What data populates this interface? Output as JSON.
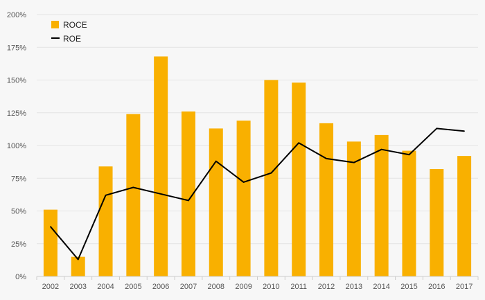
{
  "chart_data": {
    "type": "bar",
    "categories": [
      "2002",
      "2003",
      "2004",
      "2005",
      "2006",
      "2007",
      "2008",
      "2009",
      "2010",
      "2011",
      "2012",
      "2013",
      "2014",
      "2015",
      "2016",
      "2017"
    ],
    "series": [
      {
        "name": "ROCE",
        "type": "bar",
        "color": "#F9B000",
        "values": [
          51,
          15,
          84,
          124,
          168,
          126,
          113,
          119,
          150,
          148,
          117,
          103,
          108,
          96,
          82,
          92
        ]
      },
      {
        "name": "ROE",
        "type": "line",
        "color": "#000000",
        "values": [
          38,
          13,
          62,
          68,
          63,
          58,
          88,
          72,
          79,
          102,
          90,
          87,
          97,
          93,
          113,
          111
        ]
      }
    ],
    "title": "",
    "xlabel": "",
    "ylabel": "",
    "ylim": [
      0,
      200
    ],
    "ytick_labels": [
      "0%",
      "25%",
      "50%",
      "75%",
      "100%",
      "125%",
      "150%",
      "175%",
      "200%"
    ],
    "grid": true,
    "legend_position": "top-left"
  }
}
